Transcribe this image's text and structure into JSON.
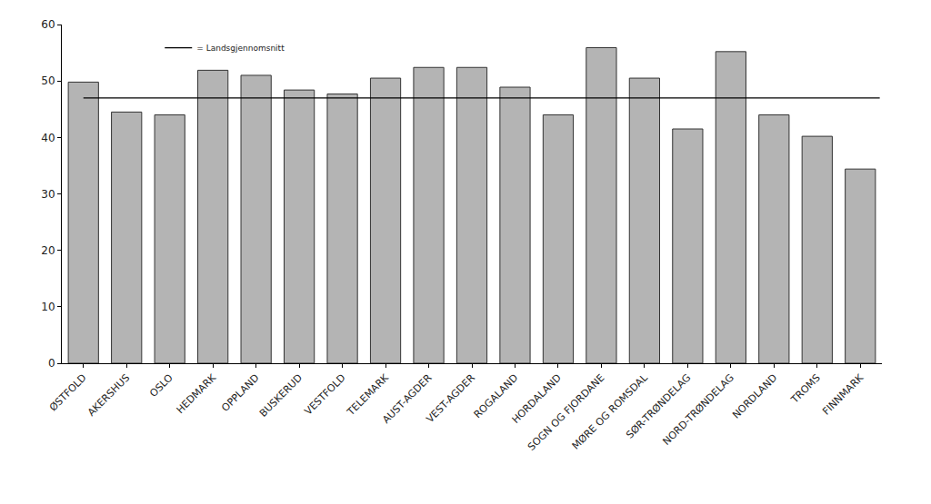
{
  "chart_data": {
    "type": "bar",
    "categories": [
      "ØSTFOLD",
      "AKERSHUS",
      "OSLO",
      "HEDMARK",
      "OPPLAND",
      "BUSKERUD",
      "VESTFOLD",
      "TELEMARK",
      "AUST-AGDER",
      "VEST-AGDER",
      "ROGALAND",
      "HORDALAND",
      "SOGN OG FJORDANE",
      "MØRE OG ROMSDAL",
      "SØR-TRØNDELAG",
      "NORD-TRØNDELAG",
      "NORDLAND",
      "TROMS",
      "FINNMARK"
    ],
    "values": [
      49.8,
      44.5,
      44.0,
      51.9,
      51.0,
      48.4,
      47.7,
      50.5,
      52.4,
      52.4,
      48.9,
      44.0,
      55.9,
      50.5,
      41.5,
      55.2,
      44.0,
      40.2,
      34.4
    ],
    "color": "#b4b4b4",
    "average": {
      "name": "= Landsgjennomsnitt",
      "value": 47.0,
      "color": "#000000"
    },
    "ylim": [
      0,
      60
    ],
    "yticks": [
      0,
      10,
      20,
      30,
      40,
      50,
      60
    ],
    "grid": false,
    "legend": "upper left"
  }
}
